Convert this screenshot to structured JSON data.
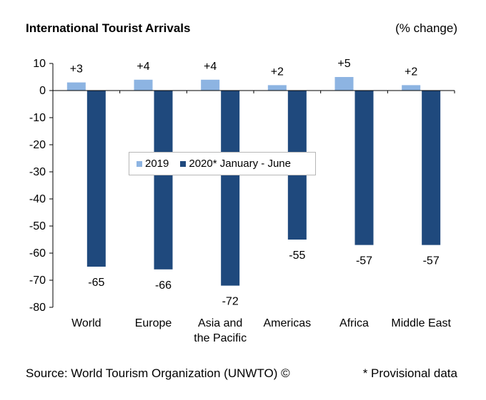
{
  "title": "International Tourist Arrivals",
  "unit": "(% change)",
  "source": "Source: World Tourism Organization (UNWTO) ©",
  "footnote": "* Provisional data",
  "colors": {
    "series2019": "#8db4e2",
    "series2020": "#1f497d"
  },
  "chart_data": {
    "type": "bar",
    "categories": [
      "World",
      "Europe",
      "Asia and the Pacific",
      "Americas",
      "Africa",
      "Middle East"
    ],
    "category_lines": [
      [
        "World"
      ],
      [
        "Europe"
      ],
      [
        "Asia and",
        "the Pacific"
      ],
      [
        "Americas"
      ],
      [
        "Africa"
      ],
      [
        "Middle East"
      ]
    ],
    "series": [
      {
        "name": "2019",
        "values": [
          3,
          4,
          4,
          2,
          5,
          2
        ],
        "labels": [
          "+3",
          "+4",
          "+4",
          "+2",
          "+5",
          "+2"
        ]
      },
      {
        "name": "2020* January - June",
        "values": [
          -65,
          -66,
          -72,
          -55,
          -57,
          -57
        ],
        "labels": [
          "-65",
          "-66",
          "-72",
          "-55",
          "-57",
          "-57"
        ]
      }
    ],
    "ylim": [
      -80,
      10
    ],
    "yticks": [
      10,
      0,
      -10,
      -20,
      -30,
      -40,
      -50,
      -60,
      -70,
      -80
    ],
    "grid": false,
    "legend": "center"
  }
}
